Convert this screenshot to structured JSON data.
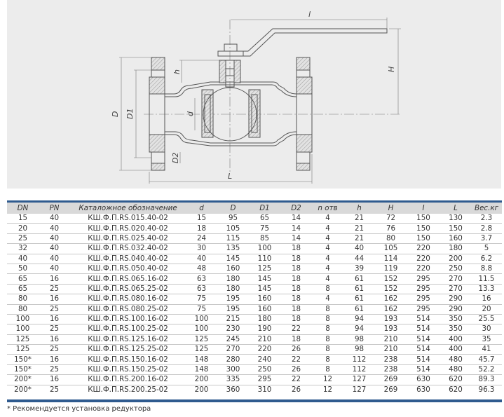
{
  "drawing": {
    "labels": {
      "l": "l",
      "H": "H",
      "h": "h",
      "D": "D",
      "D1": "D1",
      "d": "d",
      "D2": "D2",
      "L": "L"
    }
  },
  "table": {
    "headers": [
      "DN",
      "PN",
      "Каталожное обозначение",
      "d",
      "D",
      "D1",
      "D2",
      "n отв",
      "h",
      "H",
      "I",
      "L",
      "Вес.кг"
    ],
    "rows": [
      [
        "15",
        "40",
        "КШ.Ф.П.RS.015.40-02",
        "15",
        "95",
        "65",
        "14",
        "4",
        "21",
        "72",
        "150",
        "130",
        "2.3"
      ],
      [
        "20",
        "40",
        "КШ.Ф.П.RS.020.40-02",
        "18",
        "105",
        "75",
        "14",
        "4",
        "21",
        "76",
        "150",
        "150",
        "2.8"
      ],
      [
        "25",
        "40",
        "КШ.Ф.П.RS.025.40-02",
        "24",
        "115",
        "85",
        "14",
        "4",
        "21",
        "80",
        "150",
        "160",
        "3.7"
      ],
      [
        "32",
        "40",
        "КШ.Ф.П.RS.032.40-02",
        "30",
        "135",
        "100",
        "18",
        "4",
        "40",
        "105",
        "220",
        "180",
        "5"
      ],
      [
        "40",
        "40",
        "КШ.Ф.П.RS.040.40-02",
        "40",
        "145",
        "110",
        "18",
        "4",
        "44",
        "114",
        "220",
        "200",
        "6.2"
      ],
      [
        "50",
        "40",
        "КШ.Ф.П.RS.050.40-02",
        "48",
        "160",
        "125",
        "18",
        "4",
        "39",
        "119",
        "220",
        "250",
        "8.8"
      ],
      [
        "65",
        "16",
        "КШ.Ф.П.RS.065.16-02",
        "63",
        "180",
        "145",
        "18",
        "4",
        "61",
        "152",
        "295",
        "270",
        "11.5"
      ],
      [
        "65",
        "25",
        "КШ.Ф.П.RS.065.25-02",
        "63",
        "180",
        "145",
        "18",
        "8",
        "61",
        "152",
        "295",
        "270",
        "13.3"
      ],
      [
        "80",
        "16",
        "КШ.Ф.П.RS.080.16-02",
        "75",
        "195",
        "160",
        "18",
        "4",
        "61",
        "162",
        "295",
        "290",
        "16"
      ],
      [
        "80",
        "25",
        "КШ.Ф.П.RS.080.25-02",
        "75",
        "195",
        "160",
        "18",
        "8",
        "61",
        "162",
        "295",
        "290",
        "20"
      ],
      [
        "100",
        "16",
        "КШ.Ф.П.RS.100.16-02",
        "100",
        "215",
        "180",
        "18",
        "8",
        "94",
        "193",
        "514",
        "350",
        "25.5"
      ],
      [
        "100",
        "25",
        "КШ.Ф.П.RS.100.25-02",
        "100",
        "230",
        "190",
        "22",
        "8",
        "94",
        "193",
        "514",
        "350",
        "30"
      ],
      [
        "125",
        "16",
        "КШ.Ф.П.RS.125.16-02",
        "125",
        "245",
        "210",
        "18",
        "8",
        "98",
        "210",
        "514",
        "400",
        "35"
      ],
      [
        "125",
        "25",
        "КШ.Ф.П.RS.125.25-02",
        "125",
        "270",
        "220",
        "26",
        "8",
        "98",
        "210",
        "514",
        "400",
        "41"
      ],
      [
        "150*",
        "16",
        "КШ.Ф.П.RS.150.16-02",
        "148",
        "280",
        "240",
        "22",
        "8",
        "112",
        "238",
        "514",
        "480",
        "45.7"
      ],
      [
        "150*",
        "25",
        "КШ.Ф.П.RS.150.25-02",
        "148",
        "300",
        "250",
        "26",
        "8",
        "112",
        "238",
        "514",
        "480",
        "52.2"
      ],
      [
        "200*",
        "16",
        "КШ.Ф.П.RS.200.16-02",
        "200",
        "335",
        "295",
        "22",
        "12",
        "127",
        "269",
        "630",
        "620",
        "89.3"
      ],
      [
        "200*",
        "25",
        "КШ.Ф.П.RS.200.25-02",
        "200",
        "360",
        "310",
        "26",
        "12",
        "127",
        "269",
        "630",
        "620",
        "96.3"
      ]
    ]
  },
  "footnote": "* Рекомендуется установка редуктора",
  "colors": {
    "accent_bar": "#2f5b8f",
    "header_bg": "#d9d9d9",
    "drawing_bg": "#ececec"
  }
}
